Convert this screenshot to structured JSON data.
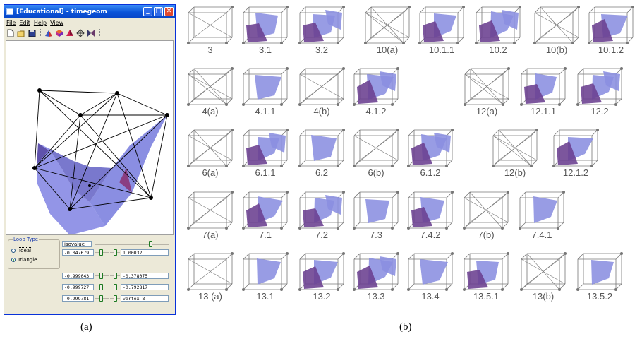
{
  "window": {
    "title": "[Educational] - timegeom",
    "controls": {
      "minimize": "_",
      "maximize": "□",
      "close": "✕"
    }
  },
  "menu": [
    "File",
    "Edit",
    "Help",
    "View"
  ],
  "toolbar_icons": [
    "new-file-icon",
    "open-folder-icon",
    "save-icon",
    "shape-icon",
    "cube-icon",
    "tetra-icon",
    "mesh-icon",
    "butterfly-icon"
  ],
  "loop_type": {
    "legend": "Loop Type",
    "options": [
      "Ideal",
      "Triangle"
    ],
    "selected": "Triangle"
  },
  "isovalue_label": "isovalue",
  "fields": {
    "r1_left": "-0.047679",
    "r1_right": "1.00032",
    "r2_left": "-0.999043",
    "r2_right": "-0.378075",
    "r3_left": "-0.999727",
    "r3_right": "-0.792817",
    "r4_left": "-0.999781",
    "r4_right": "vertex 8"
  },
  "captions": {
    "a": "(a)",
    "b": "(b)"
  },
  "cases": [
    [
      "3",
      "3.1",
      "3.2",
      "10(a)",
      "10.1.1",
      "10.2",
      "10(b)",
      "10.1.2"
    ],
    [
      "4(a)",
      "4.1.1",
      "4(b)",
      "4.1.2",
      "12(a)",
      "12.1.1",
      "12.2"
    ],
    [
      "6(a)",
      "6.1.1",
      "6.2",
      "6(b)",
      "6.1.2",
      "12(b)",
      "12.1.2"
    ],
    [
      "7(a)",
      "7.1",
      "7.2",
      "7.3",
      "7.4.2",
      "7(b)",
      "7.4.1"
    ],
    [
      "13 (a)",
      "13.1",
      "13.2",
      "13.3",
      "13.4",
      "13.5.1",
      "13(b)",
      "13.5.2"
    ]
  ],
  "colors": {
    "surface": "#8a8ee0",
    "surface_dark": "#6a3f8f",
    "titlebar": "#0a53d8"
  }
}
